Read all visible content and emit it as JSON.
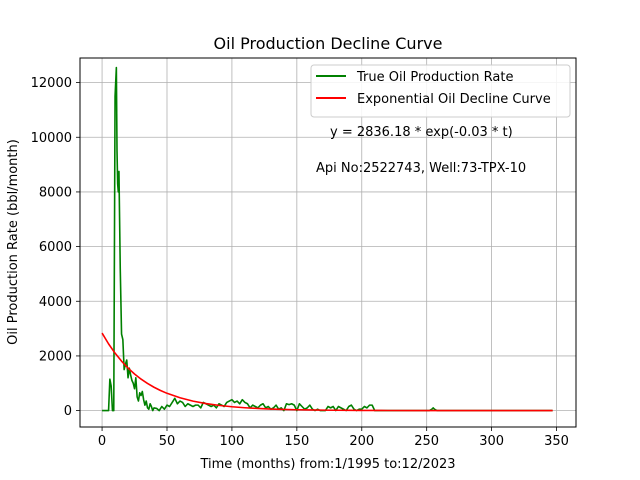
{
  "chart_data": {
    "type": "line",
    "title": "Oil Production Decline Curve",
    "xlabel": "Time (months) from:1/1995 to:12/2023",
    "ylabel": "Oil Production Rate (bbl/month)",
    "xlim": [
      -17,
      365
    ],
    "ylim": [
      -600,
      12900
    ],
    "xticks": [
      0,
      50,
      100,
      150,
      200,
      250,
      300,
      350
    ],
    "yticks": [
      0,
      2000,
      4000,
      6000,
      8000,
      10000,
      12000
    ],
    "grid": true,
    "legend_position": "top-right",
    "colors": {
      "true_rate": "#008000",
      "fit_curve": "#ff0000"
    },
    "annotations": [
      "y = 2836.18 * exp(-0.03 * t)",
      "Api No:2522743, Well:73-TPX-10"
    ],
    "series": [
      {
        "name": "True Oil Production Rate",
        "color": "#008000",
        "x": [
          0,
          3,
          5,
          6,
          7,
          8,
          9,
          10,
          11,
          11.5,
          12,
          12.5,
          13,
          13.5,
          14,
          15,
          16,
          17,
          18,
          19,
          20,
          21,
          22,
          23,
          24,
          25,
          26,
          27,
          28,
          29,
          30,
          31,
          32,
          33,
          34,
          35,
          36,
          37,
          38,
          39,
          40,
          42,
          44,
          46,
          48,
          50,
          52,
          54,
          56,
          58,
          60,
          62,
          64,
          66,
          68,
          70,
          72,
          74,
          76,
          78,
          80,
          82,
          84,
          86,
          88,
          90,
          92,
          94,
          96,
          98,
          100,
          102,
          104,
          106,
          108,
          110,
          112,
          114,
          116,
          118,
          120,
          122,
          124,
          126,
          128,
          130,
          132,
          134,
          136,
          138,
          140,
          142,
          144,
          146,
          148,
          150,
          152,
          154,
          156,
          158,
          160,
          162,
          164,
          166,
          168,
          170,
          172,
          174,
          176,
          178,
          180,
          182,
          184,
          186,
          188,
          190,
          192,
          194,
          196,
          198,
          200,
          202,
          204,
          206,
          208,
          210,
          212,
          215,
          220,
          225,
          230,
          235,
          240,
          245,
          250,
          252,
          254,
          255,
          256,
          258,
          262,
          270,
          280,
          290,
          300,
          310,
          320,
          330,
          340,
          347
        ],
        "values": [
          0,
          0,
          0,
          1150,
          900,
          0,
          0,
          11500,
          12550,
          9500,
          8300,
          8000,
          8750,
          7000,
          5200,
          2800,
          2600,
          1500,
          1700,
          1850,
          1200,
          1550,
          1300,
          1100,
          1000,
          800,
          1200,
          500,
          350,
          650,
          550,
          700,
          400,
          200,
          350,
          100,
          50,
          250,
          150,
          0,
          100,
          80,
          0,
          150,
          50,
          200,
          150,
          300,
          450,
          250,
          350,
          300,
          150,
          250,
          200,
          150,
          200,
          200,
          100,
          300,
          250,
          200,
          150,
          200,
          100,
          250,
          200,
          150,
          300,
          350,
          400,
          300,
          350,
          250,
          400,
          300,
          250,
          100,
          200,
          150,
          100,
          200,
          250,
          100,
          150,
          50,
          100,
          200,
          50,
          100,
          0,
          250,
          220,
          250,
          200,
          0,
          250,
          150,
          50,
          100,
          200,
          50,
          0,
          50,
          0,
          0,
          0,
          150,
          100,
          150,
          0,
          150,
          100,
          50,
          0,
          150,
          200,
          50,
          0,
          50,
          50,
          150,
          100,
          200,
          200,
          0,
          0,
          0,
          0,
          0,
          0,
          0,
          0,
          0,
          0,
          0,
          50,
          100,
          50,
          0,
          0,
          0,
          0,
          0,
          0,
          0,
          0,
          0,
          0,
          0
        ]
      },
      {
        "name": "Exponential Oil Decline Curve",
        "color": "#ff0000",
        "x": [
          0,
          5,
          10,
          15,
          20,
          25,
          30,
          35,
          40,
          45,
          50,
          60,
          70,
          80,
          90,
          100,
          110,
          120,
          130,
          140,
          150,
          160,
          170,
          180,
          190,
          200,
          220,
          240,
          260,
          280,
          300,
          320,
          340,
          347
        ],
        "values": [
          2836.18,
          2441.1,
          2101.1,
          1808.5,
          1556.6,
          1339.8,
          1153.2,
          992.6,
          854.3,
          735.3,
          632.9,
          468.9,
          347.4,
          257.3,
          190.6,
          141.2,
          104.6,
          77.5,
          57.4,
          42.5,
          31.5,
          23.3,
          17.3,
          12.8,
          9.5,
          7.0,
          3.9,
          2.1,
          1.2,
          0.6,
          0.4,
          0.2,
          0.1,
          0.1
        ]
      }
    ]
  }
}
